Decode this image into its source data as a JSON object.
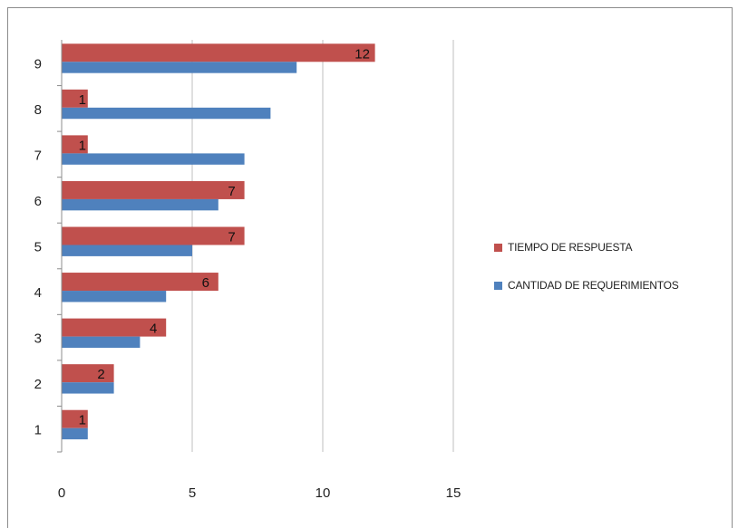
{
  "chart_data": {
    "type": "bar",
    "orientation": "horizontal",
    "categories": [
      "1",
      "2",
      "3",
      "4",
      "5",
      "6",
      "7",
      "8",
      "9"
    ],
    "series": [
      {
        "name": "TIEMPO DE RESPUESTA",
        "color": "#c0504d",
        "values": [
          1,
          2,
          4,
          6,
          7,
          7,
          1,
          1,
          12
        ],
        "data_labels": true
      },
      {
        "name": "CANTIDAD DE REQUERIMIENTOS",
        "color": "#4f81bd",
        "values": [
          1,
          2,
          3,
          4,
          5,
          6,
          7,
          8,
          9
        ],
        "data_labels": false
      }
    ],
    "xlim": [
      0,
      15
    ],
    "x_ticks": [
      0,
      5,
      10,
      15
    ],
    "grid": true,
    "legend_position": "right",
    "title": "",
    "xlabel": "",
    "ylabel": ""
  }
}
